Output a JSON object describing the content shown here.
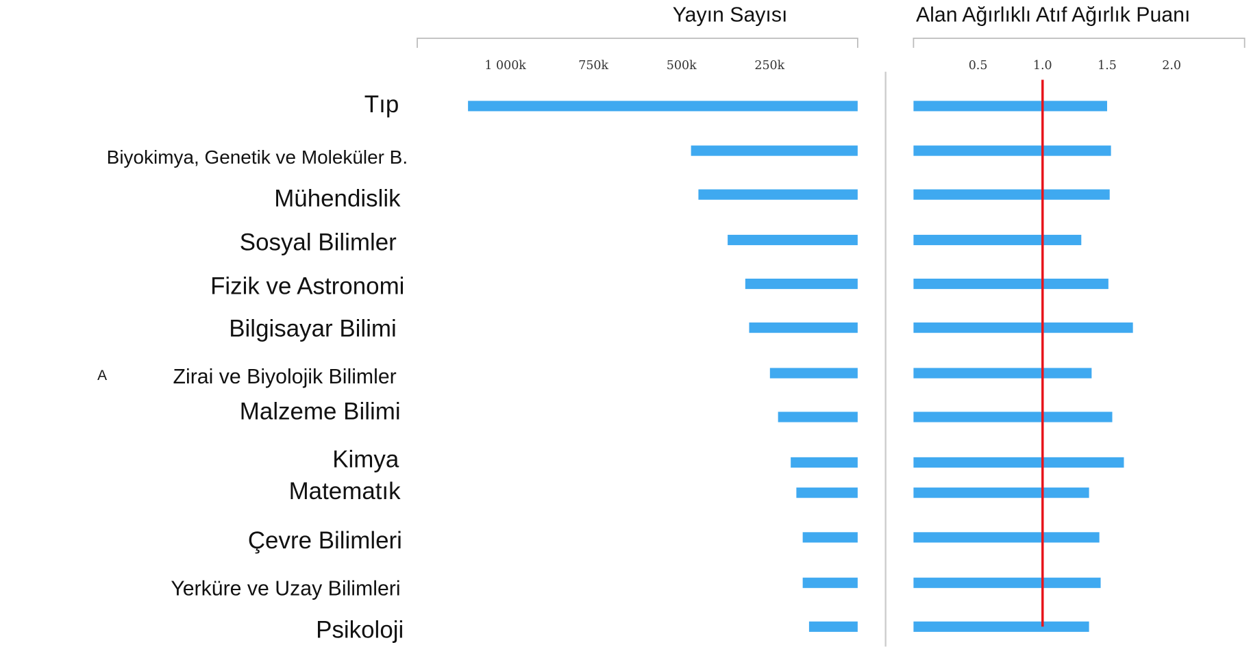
{
  "chart_data": [
    {
      "type": "bar",
      "orientation": "horizontal",
      "reversed": true,
      "title": "Yayın Sayısı",
      "categories": [
        "Tıp",
        "Biyokimya, Genetik ve Moleküler B.",
        "Mühendislik",
        "Sosyal Bilimler",
        "Fizik ve Astronomi",
        "Bilgisayar Bilimi",
        "Zirai ve Biyolojik Bilimler",
        "Malzeme Bilimi",
        "Kimya",
        "Matematık",
        "Çevre Bilimleri",
        "Yerküre ve Uzay Bilimleri",
        "Psikoloji"
      ],
      "values": [
        1106000,
        473000,
        452000,
        369000,
        319000,
        308000,
        249000,
        226000,
        190000,
        174000,
        156000,
        156000,
        138000
      ],
      "color": "#3fa9f0",
      "xlim": [
        0,
        1250000
      ],
      "xticks": [
        {
          "value": 1000000,
          "label": "1 000k"
        },
        {
          "value": 750000,
          "label": "750k"
        },
        {
          "value": 500000,
          "label": "500k"
        },
        {
          "value": 250000,
          "label": "250k"
        }
      ],
      "annotations": [
        {
          "text": "A",
          "category": 6
        }
      ]
    },
    {
      "type": "bar",
      "orientation": "horizontal",
      "title": "Alan Ağırlıklı Atıf Ağırlık Puanı",
      "values": [
        1.5,
        1.53,
        1.52,
        1.3,
        1.51,
        1.7,
        1.38,
        1.54,
        1.63,
        1.36,
        1.44,
        1.45,
        1.36
      ],
      "color": "#3fa9f0",
      "xlim": [
        0,
        2.25
      ],
      "xticks": [
        0.5,
        {
          "value": 1,
          "label": "1.0"
        },
        1.5,
        {
          "value": 2,
          "label": "2.0"
        }
      ],
      "reference_line": 1,
      "reference_color": "#e8141b"
    }
  ]
}
